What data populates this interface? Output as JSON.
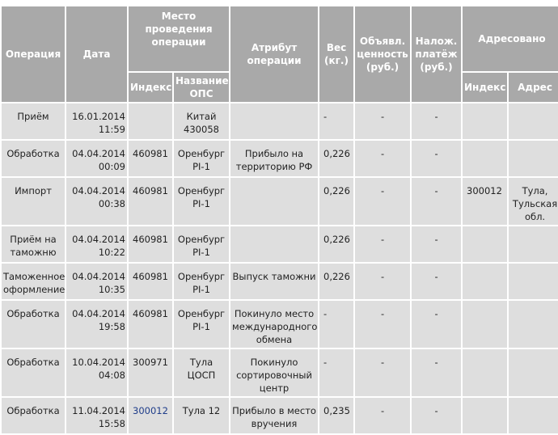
{
  "headers": {
    "operation": "Операция",
    "date": "Дата",
    "place": "Место проведения операции",
    "place_index": "Индекс",
    "place_name": "Название ОПС",
    "attribute": "Атрибут операции",
    "weight": "Вес (кг.)",
    "declared": "Объявл. ценность (руб.)",
    "cod": "Налож. платёж (руб.)",
    "addressed": "Адресовано",
    "addr_index": "Индекс",
    "addr_address": "Адрес"
  },
  "rows": [
    {
      "op": "Приём",
      "date": "16.01.2014",
      "time": "11:59",
      "index": "",
      "name": "Китай 430058",
      "attr": "",
      "weight": "-",
      "declared": "-",
      "cod": "-",
      "aidx": "",
      "addr": ""
    },
    {
      "op": "Обработка",
      "date": "04.04.2014",
      "time": "00:09",
      "index": "460981",
      "name": "Оренбург PI-1",
      "attr": "Прибыло на территорию РФ",
      "weight": "0,226",
      "declared": "-",
      "cod": "-",
      "aidx": "",
      "addr": ""
    },
    {
      "op": "Импорт",
      "date": "04.04.2014",
      "time": "00:38",
      "index": "460981",
      "name": "Оренбург PI-1",
      "attr": "",
      "weight": "0,226",
      "declared": "-",
      "cod": "-",
      "aidx": "300012",
      "addr": "Тула, Тульская обл."
    },
    {
      "op": "Приём на таможню",
      "date": "04.04.2014",
      "time": "10:22",
      "index": "460981",
      "name": "Оренбург PI-1",
      "attr": "",
      "weight": "0,226",
      "declared": "-",
      "cod": "-",
      "aidx": "",
      "addr": ""
    },
    {
      "op": "Таможенное оформление",
      "date": "04.04.2014",
      "time": "10:35",
      "index": "460981",
      "name": "Оренбург PI-1",
      "attr": "Выпуск таможни",
      "weight": "0,226",
      "declared": "-",
      "cod": "-",
      "aidx": "",
      "addr": ""
    },
    {
      "op": "Обработка",
      "date": "04.04.2014",
      "time": "19:58",
      "index": "460981",
      "name": "Оренбург PI-1",
      "attr": "Покинуло место международного обмена",
      "weight": "-",
      "declared": "-",
      "cod": "-",
      "aidx": "",
      "addr": ""
    },
    {
      "op": "Обработка",
      "date": "10.04.2014",
      "time": "04:08",
      "index": "300971",
      "name": "Тула ЦОСП",
      "attr": "Покинуло сортировочный центр",
      "weight": "-",
      "declared": "-",
      "cod": "-",
      "aidx": "",
      "addr": ""
    },
    {
      "op": "Обработка",
      "date": "11.04.2014",
      "time": "15:58",
      "index": "300012",
      "index_link": true,
      "name": "Тула 12",
      "attr": "Прибыло в место вручения",
      "weight": "0,235",
      "declared": "-",
      "cod": "-",
      "aidx": "",
      "addr": ""
    }
  ]
}
